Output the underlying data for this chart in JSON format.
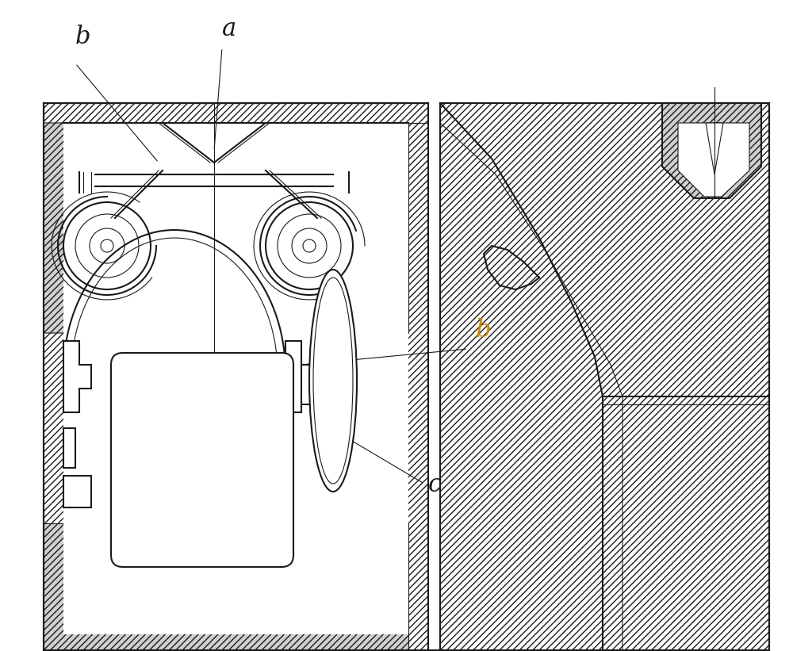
{
  "bg_color": "#ffffff",
  "line_color": "#1a1a1a",
  "hatch_color": "#1a1a1a",
  "label_a": "a",
  "label_b": "b",
  "label_c": "c",
  "label_color_b_right": "#c8860a",
  "label_color_others": "#1a1a1a",
  "figsize": [
    10.0,
    8.21
  ],
  "dpi": 100
}
